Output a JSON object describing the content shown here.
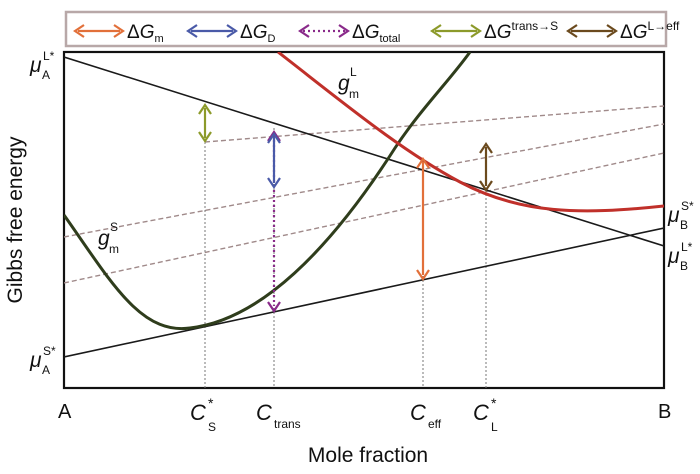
{
  "legend": {
    "items": [
      {
        "sym": "ΔG",
        "sub": "m",
        "sup": "",
        "color": "#e2703a",
        "style": "solid"
      },
      {
        "sym": "ΔG",
        "sub": "D",
        "sup": "",
        "color": "#4a5aa8",
        "style": "solid"
      },
      {
        "sym": "ΔG",
        "sub": "total",
        "sup": "",
        "color": "#8a2a8a",
        "style": "dotted"
      },
      {
        "sym": "ΔG",
        "sub": "",
        "sup": "trans→S",
        "color": "#8c9a2a",
        "style": "solid"
      },
      {
        "sym": "ΔG",
        "sub": "",
        "sup": "L→eff",
        "color": "#6b4a1e",
        "style": "solid"
      }
    ]
  },
  "axes": {
    "ylabel": "Gibbs free energy",
    "xlabel": "Mole fraction",
    "x_start": "A",
    "x_end": "B"
  },
  "left_labels": {
    "top": {
      "base": "μ",
      "sub": "A",
      "sup": "L*"
    },
    "bottom": {
      "base": "μ",
      "sub": "A",
      "sup": "S*"
    }
  },
  "right_labels": {
    "upper": {
      "base": "μ",
      "sub": "B",
      "sup": "S*"
    },
    "lower": {
      "base": "μ",
      "sub": "B",
      "sup": "L*"
    }
  },
  "curve_labels": {
    "liquid": {
      "base": "g",
      "sub": "m",
      "sup": "L"
    },
    "solid": {
      "base": "g",
      "sub": "m",
      "sup": "S"
    }
  },
  "x_ticks": {
    "cs": {
      "base": "C",
      "sub": "S",
      "sup": "*"
    },
    "ctrans": {
      "base": "C",
      "sub": "trans",
      "sup": ""
    },
    "ceff": {
      "base": "C",
      "sub": "eff",
      "sup": ""
    },
    "cl": {
      "base": "C",
      "sub": "L",
      "sup": "*"
    }
  },
  "colors": {
    "liquid_curve": "#c0302a",
    "solid_curve": "#2f3d1c",
    "tangent": "#1a1a1a",
    "parallel": "#a08a8a",
    "guide": "#777777",
    "legend_border": "#b8a8a8"
  }
}
